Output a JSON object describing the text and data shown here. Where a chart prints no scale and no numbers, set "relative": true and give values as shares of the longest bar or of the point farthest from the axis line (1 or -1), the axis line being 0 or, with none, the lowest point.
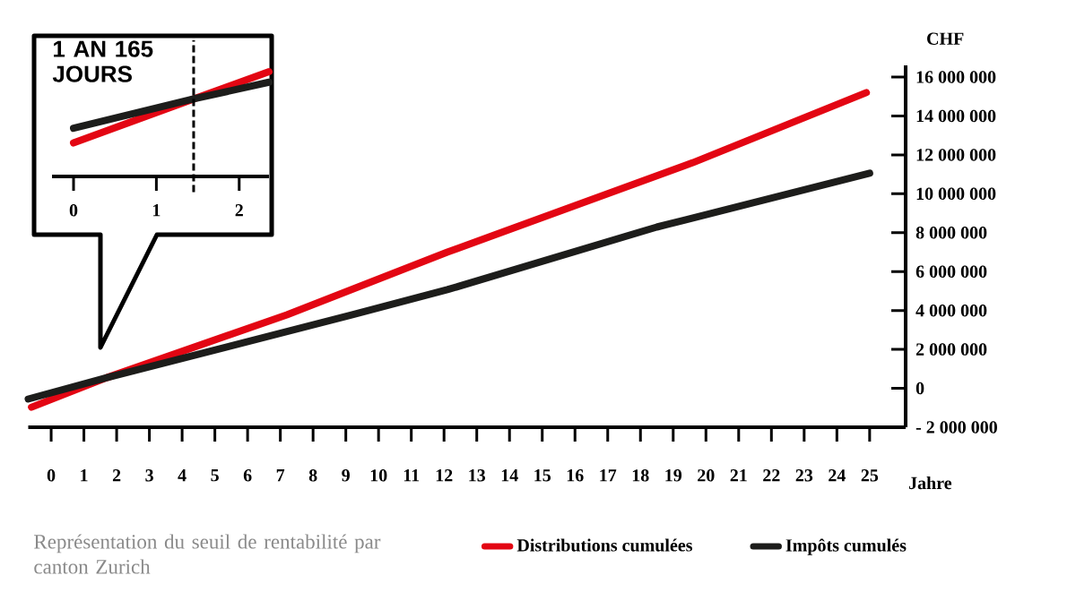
{
  "chart_data": [
    {
      "type": "line",
      "xlabel": "Jahre",
      "ylabel": "CHF",
      "legend": "bottom",
      "xlim": [
        -0.7,
        26.1
      ],
      "ylim": [
        -2000000,
        16600000
      ],
      "xticks": [
        0,
        1,
        2,
        3,
        4,
        5,
        6,
        7,
        8,
        9,
        10,
        11,
        12,
        13,
        14,
        15,
        16,
        17,
        18,
        19,
        20,
        21,
        22,
        23,
        24,
        25
      ],
      "yticks": [
        {
          "value": -2000000,
          "label": "- 2 000 000"
        },
        0,
        {
          "value": 2000000,
          "label": "2 000 000"
        },
        {
          "value": 4000000,
          "label": "4 000 000"
        },
        {
          "value": 6000000,
          "label": "6 000 000"
        },
        {
          "value": 8000000,
          "label": "8 000 000"
        },
        {
          "value": 10000000,
          "label": "10 000 000"
        },
        {
          "value": 12000000,
          "label": "12 000 000"
        },
        {
          "value": 14000000,
          "label": "14 000 000"
        },
        {
          "value": 16000000,
          "label": "16 000 000"
        }
      ],
      "series": [
        {
          "name": "Distributions cumulées",
          "color": "#e30613",
          "x": [
            -0.6,
            1.7,
            7.2,
            12.1,
            19.6,
            24.9
          ],
          "values": [
            -970000,
            550000,
            3780000,
            7000000,
            11600000,
            15200000
          ]
        },
        {
          "name": "Impôts cumulés",
          "color": "#1d1d1b",
          "x": [
            -0.7,
            1.7,
            9.2,
            12.1,
            18.5,
            25.0
          ],
          "values": [
            -550000,
            550000,
            3780000,
            5070000,
            8290000,
            11060000
          ]
        }
      ],
      "annotations": [
        "Représentation du seuil de rentabilité par canton Zurich"
      ]
    },
    {
      "type": "line",
      "relative": true,
      "xlim": [
        -0.26,
        2.36
      ],
      "xticks": [
        0,
        1,
        2
      ],
      "series": [
        {
          "color": "#e30613",
          "x": [
            0,
            1.45,
            2.36
          ],
          "values": [
            0.32,
            0.74,
            1.0
          ]
        },
        {
          "color": "#1d1d1b",
          "x": [
            0,
            1.45,
            2.36
          ],
          "values": [
            0.46,
            0.74,
            0.9
          ]
        }
      ],
      "ref_lines": [
        {
          "axis": "x",
          "value": 1.45,
          "label": "1 AN 165 JOURS",
          "line_style": "dashed"
        }
      ]
    }
  ]
}
